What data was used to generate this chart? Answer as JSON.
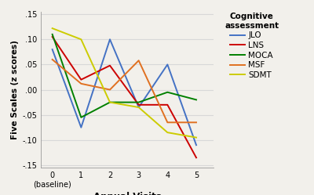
{
  "x": [
    0,
    1,
    2,
    3,
    4,
    5
  ],
  "JLO": [
    0.08,
    -0.075,
    0.1,
    -0.035,
    0.05,
    -0.11
  ],
  "LNS": [
    0.105,
    0.02,
    0.048,
    -0.03,
    -0.03,
    -0.135
  ],
  "MOCA": [
    0.11,
    -0.055,
    -0.025,
    -0.025,
    -0.005,
    -0.02
  ],
  "MSF": [
    0.06,
    0.012,
    0.0,
    0.058,
    -0.065,
    -0.065
  ],
  "SDMT": [
    0.122,
    0.1,
    -0.025,
    -0.035,
    -0.085,
    -0.095
  ],
  "colors": {
    "JLO": "#4472C4",
    "LNS": "#CC0000",
    "MOCA": "#008000",
    "MSF": "#E07020",
    "SDMT": "#CCCC00"
  },
  "legend_title": "Cognitive\nassessment",
  "xlabel": "Annual Visits",
  "ylabel": "Five Scales (z scores)",
  "ylim": [
    -0.155,
    0.155
  ],
  "xlim": [
    -0.4,
    5.6
  ],
  "yticks": [
    -0.15,
    -0.1,
    -0.05,
    0.0,
    0.05,
    0.1,
    0.15
  ],
  "xtick_labels": [
    "0\n(baseline)",
    "1",
    "2",
    "3",
    "4",
    "5"
  ],
  "bg_color": "#f2f0eb",
  "grid_color": "#d8d8d8"
}
